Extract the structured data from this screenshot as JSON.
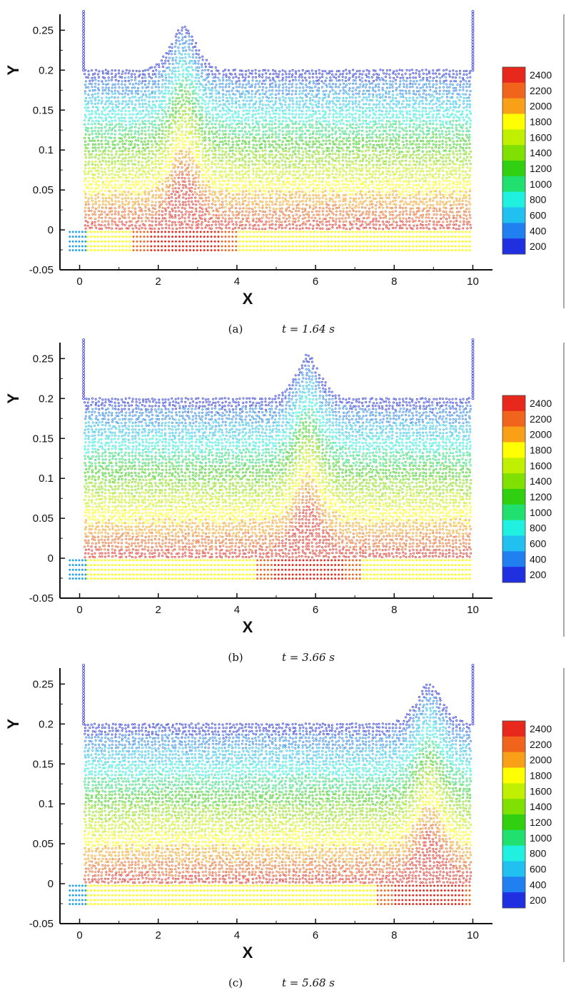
{
  "chart_data": [
    {
      "type": "scatter",
      "caption_label": "(a)",
      "caption_time": "t = 1.64 s",
      "xlabel": "X",
      "ylabel": "Y",
      "xlim": [
        -0.5,
        10.5
      ],
      "ylim": [
        -0.05,
        0.27
      ],
      "xticks": [
        "0",
        "2",
        "4",
        "6",
        "8",
        "10"
      ],
      "yticks": [
        "-0.05",
        "0",
        "0.05",
        "0.1",
        "0.15",
        "0.2",
        "0.25"
      ],
      "colorbar_labels": [
        "2400",
        "2200",
        "2000",
        "1800",
        "1600",
        "1400",
        "1200",
        "1000",
        "800",
        "600",
        "400",
        "200"
      ],
      "colorbar_range": [
        100,
        2500
      ],
      "wave_crest": {
        "x": 2.65,
        "y": 0.258
      },
      "still_water_level": 0.2,
      "walls_x": [
        0.1,
        10.0
      ],
      "grid": false
    },
    {
      "type": "scatter",
      "caption_label": "(b)",
      "caption_time": "t = 3.66 s",
      "xlabel": "X",
      "ylabel": "Y",
      "xlim": [
        -0.5,
        10.5
      ],
      "ylim": [
        -0.05,
        0.27
      ],
      "xticks": [
        "0",
        "2",
        "4",
        "6",
        "8",
        "10"
      ],
      "yticks": [
        "-0.05",
        "0",
        "0.05",
        "0.1",
        "0.15",
        "0.2",
        "0.25"
      ],
      "colorbar_labels": [
        "2400",
        "2200",
        "2000",
        "1800",
        "1600",
        "1400",
        "1200",
        "1000",
        "800",
        "600",
        "400",
        "200"
      ],
      "colorbar_range": [
        100,
        2500
      ],
      "wave_crest": {
        "x": 5.8,
        "y": 0.255
      },
      "still_water_level": 0.2,
      "walls_x": [
        0.1,
        10.0
      ],
      "grid": false
    },
    {
      "type": "scatter",
      "caption_label": "(c)",
      "caption_time": "t = 5.68 s",
      "xlabel": "X",
      "ylabel": "Y",
      "xlim": [
        -0.5,
        10.5
      ],
      "ylim": [
        -0.05,
        0.27
      ],
      "xticks": [
        "0",
        "2",
        "4",
        "6",
        "8",
        "10"
      ],
      "yticks": [
        "-0.05",
        "0",
        "0.05",
        "0.1",
        "0.15",
        "0.2",
        "0.25"
      ],
      "colorbar_labels": [
        "2400",
        "2200",
        "2000",
        "1800",
        "1600",
        "1400",
        "1200",
        "1000",
        "800",
        "600",
        "400",
        "200"
      ],
      "colorbar_range": [
        100,
        2500
      ],
      "wave_crest": {
        "x": 8.9,
        "y": 0.252
      },
      "still_water_level": 0.2,
      "walls_x": [
        0.1,
        10.0
      ],
      "grid": false
    }
  ],
  "colorbar_colors": [
    "#e8281c",
    "#f0641c",
    "#f8a018",
    "#ffff00",
    "#c0f000",
    "#80e000",
    "#30d010",
    "#20e070",
    "#20f0e0",
    "#20c0f0",
    "#2080f0",
    "#2030e0"
  ]
}
